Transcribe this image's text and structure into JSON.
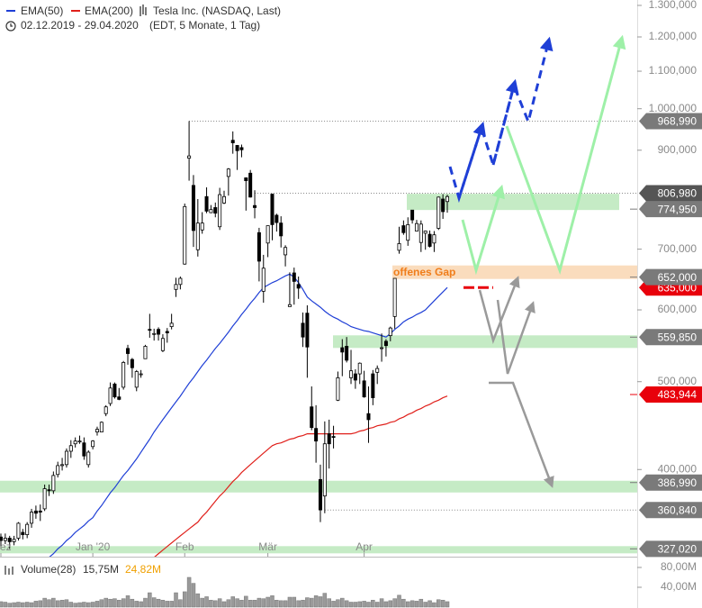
{
  "chart_data": {
    "type": "candlestick",
    "title": "Tesla Inc. (NASDAQ, Last)",
    "period": "02.12.2019 - 29.04.2020",
    "subtitle": "(EDT, 5 Monate, 1 Tag)",
    "annotation": "offenes Gap",
    "log_scale": true,
    "color": "#000000",
    "x": [
      "2019-12-02",
      "2019-12-03",
      "2019-12-04",
      "2019-12-05",
      "2019-12-06",
      "2019-12-09",
      "2019-12-10",
      "2019-12-11",
      "2019-12-12",
      "2019-12-13",
      "2019-12-16",
      "2019-12-17",
      "2019-12-18",
      "2019-12-19",
      "2019-12-20",
      "2019-12-23",
      "2019-12-24",
      "2019-12-26",
      "2019-12-27",
      "2019-12-30",
      "2019-12-31",
      "2020-01-02",
      "2020-01-03",
      "2020-01-06",
      "2020-01-07",
      "2020-01-08",
      "2020-01-09",
      "2020-01-10",
      "2020-01-13",
      "2020-01-14",
      "2020-01-15",
      "2020-01-16",
      "2020-01-17",
      "2020-01-21",
      "2020-01-22",
      "2020-01-23",
      "2020-01-24",
      "2020-01-27",
      "2020-01-28",
      "2020-01-29",
      "2020-01-30",
      "2020-01-31",
      "2020-02-03",
      "2020-02-04",
      "2020-02-05",
      "2020-02-06",
      "2020-02-07",
      "2020-02-10",
      "2020-02-11",
      "2020-02-12",
      "2020-02-13",
      "2020-02-14",
      "2020-02-18",
      "2020-02-19",
      "2020-02-20",
      "2020-02-21",
      "2020-02-24",
      "2020-02-25",
      "2020-02-26",
      "2020-02-27",
      "2020-02-28",
      "2020-03-02",
      "2020-03-03",
      "2020-03-04",
      "2020-03-05",
      "2020-03-06",
      "2020-03-09",
      "2020-03-10",
      "2020-03-11",
      "2020-03-12",
      "2020-03-13",
      "2020-03-16",
      "2020-03-17",
      "2020-03-18",
      "2020-03-19",
      "2020-03-20",
      "2020-03-23",
      "2020-03-24",
      "2020-03-25",
      "2020-03-26",
      "2020-03-27",
      "2020-03-30",
      "2020-03-31",
      "2020-04-01",
      "2020-04-02",
      "2020-04-03",
      "2020-04-06",
      "2020-04-07",
      "2020-04-08",
      "2020-04-09",
      "2020-04-13",
      "2020-04-14",
      "2020-04-15",
      "2020-04-16",
      "2020-04-17",
      "2020-04-20",
      "2020-04-21",
      "2020-04-22",
      "2020-04-23",
      "2020-04-24",
      "2020-04-27",
      "2020-04-28",
      "2020-04-29"
    ],
    "candles": {
      "open": [
        337,
        334,
        336,
        333,
        336,
        341,
        339,
        349,
        360,
        360,
        362,
        380,
        379,
        395,
        404,
        405,
        419,
        427,
        430,
        428,
        405,
        424,
        440,
        440,
        461,
        473,
        497,
        481,
        493,
        544,
        529,
        493,
        509,
        530,
        571,
        565,
        571,
        541,
        568,
        575,
        632,
        640,
        674,
        882,
        823,
        699,
        735,
        800,
        768,
        778,
        741,
        787,
        842,
        923,
        911,
        906,
        839,
        849,
        782,
        730,
        629,
        711,
        805,
        763,
        748,
        690,
        605,
        659,
        640,
        580,
        595,
        469,
        444,
        390,
        374,
        438,
        435,
        477,
        545,
        547,
        505,
        510,
        510,
        501,
        461,
        510,
        512,
        545,
        554,
        562,
        590,
        698,
        743,
        716,
        773,
        733,
        712,
        729,
        727,
        711,
        738,
        795,
        790
      ],
      "high": [
        340,
        340,
        338,
        338,
        350,
        344,
        350,
        362,
        365,
        366,
        385,
        385,
        398,
        408,
        412,
        422,
        431,
        434,
        436,
        434,
        420,
        431,
        446,
        452,
        471,
        499,
        499,
        492,
        527,
        549,
        531,
        515,
        515,
        549,
        594,
        572,
        574,
        564,
        573,
        594,
        651,
        653,
        786,
        969,
        845,
        795,
        769,
        819,
        783,
        788,
        818,
        812,
        860,
        944,
        912,
        913,
        840,
        856,
        813,
        739,
        690,
        743,
        806,
        766,
        761,
        707,
        660,
        668,
        653,
        596,
        607,
        494,
        471,
        405,
        452,
        454,
        447,
        513,
        557,
        560,
        542,
        516,
        525,
        514,
        494,
        515,
        521,
        565,
        557,
        575,
        650,
        741,
        753,
        759,
        772,
        754,
        753,
        734,
        734,
        733,
        800,
        805,
        804
      ],
      "low": [
        327,
        331,
        327,
        330,
        334,
        335,
        336,
        345,
        353,
        351,
        360,
        374,
        376,
        392,
        399,
        402,
        412,
        423,
        427,
        410,
        402,
        421,
        436,
        440,
        458,
        470,
        479,
        477,
        490,
        522,
        505,
        488,
        505,
        530,
        559,
        555,
        555,
        539,
        552,
        571,
        620,
        632,
        673,
        833,
        704,
        687,
        728,
        767,
        767,
        759,
        735,
        785,
        802,
        892,
        856,
        884,
        772,
        798,
        757,
        645,
        611,
        686,
        716,
        732,
        703,
        670,
        605,
        608,
        617,
        546,
        505,
        442,
        407,
        350,
        358,
        401,
        422,
        476,
        507,
        525,
        497,
        491,
        497,
        480,
        428,
        471,
        497,
        526,
        533,
        554,
        572,
        692,
        726,
        706,
        747,
        733,
        695,
        699,
        703,
        695,
        735,
        756,
        768
      ],
      "close": [
        334,
        336,
        333,
        335,
        349,
        339,
        348,
        359,
        358,
        359,
        381,
        379,
        394,
        404,
        405,
        419,
        425,
        430,
        430,
        414,
        418,
        430,
        443,
        451,
        469,
        492,
        481,
        478,
        525,
        537,
        518,
        513,
        510,
        547,
        570,
        565,
        564,
        558,
        566,
        580,
        640,
        650,
        780,
        887,
        734,
        748,
        748,
        771,
        774,
        767,
        804,
        800,
        858,
        917,
        899,
        901,
        833,
        799,
        778,
        679,
        667,
        743,
        745,
        749,
        724,
        703,
        608,
        645,
        634,
        560,
        546,
        445,
        430,
        361,
        427,
        427,
        434,
        505,
        539,
        528,
        514,
        502,
        524,
        481,
        454,
        480,
        517,
        545,
        548,
        573,
        650,
        710,
        730,
        745,
        754,
        747,
        746,
        733,
        705,
        726,
        799,
        770,
        800
      ]
    },
    "series": [
      {
        "name": "EMA(50)",
        "color": "#1f3fd6",
        "values": [
          null,
          null,
          null,
          null,
          null,
          null,
          null,
          null,
          null,
          null,
          null,
          320,
          323,
          327,
          330,
          334,
          337,
          341,
          344,
          347,
          351,
          354,
          360,
          365,
          371,
          377,
          382,
          388,
          394,
          399,
          405,
          411,
          418,
          425,
          432,
          440,
          447,
          454,
          461,
          468,
          475,
          482,
          490,
          498,
          505,
          513,
          521,
          528,
          536,
          544,
          551,
          559,
          567,
          576,
          584,
          593,
          601,
          610,
          618,
          627,
          635,
          639,
          643,
          646,
          650,
          654,
          657,
          652,
          643,
          632,
          620,
          614,
          609,
          604,
          598,
          593,
          589,
          586,
          582,
          579,
          575,
          573,
          571,
          569,
          568,
          566,
          564,
          562,
          560,
          565,
          571,
          576,
          582,
          586,
          589,
          593,
          596,
          600,
          607,
          614,
          621,
          628,
          635
        ]
      },
      {
        "name": "EMA(200)",
        "color": "#e0201b",
        "values": [
          null,
          null,
          null,
          null,
          null,
          null,
          null,
          null,
          null,
          null,
          null,
          null,
          null,
          null,
          null,
          null,
          null,
          null,
          null,
          null,
          null,
          null,
          null,
          null,
          null,
          null,
          null,
          null,
          null,
          null,
          null,
          null,
          null,
          null,
          null,
          320,
          323,
          326,
          329,
          332,
          335,
          338,
          341,
          344,
          347,
          350,
          355,
          359,
          364,
          369,
          374,
          378,
          383,
          388,
          392,
          397,
          401,
          405,
          409,
          413,
          417,
          421,
          425,
          427,
          428,
          430,
          432,
          433,
          435,
          436,
          438,
          438,
          438,
          438,
          438,
          438,
          438,
          438,
          438,
          438,
          438,
          439,
          441,
          442,
          444,
          445,
          447,
          448,
          449,
          451,
          452,
          455,
          457,
          460,
          462,
          465,
          467,
          470,
          472,
          475,
          477,
          480,
          482
        ]
      }
    ],
    "ylim": [
      320.6,
      1318
    ],
    "yticks": [
      {
        "value": 400,
        "label": "400,000"
      },
      {
        "value": 500,
        "label": "500,000"
      },
      {
        "value": 600,
        "label": "600,000"
      },
      {
        "value": 700,
        "label": "700,000"
      },
      {
        "value": 900,
        "label": "900,000"
      },
      {
        "value": 1000,
        "label": "1.000,000"
      },
      {
        "value": 1100,
        "label": "1.100,000"
      },
      {
        "value": 1200,
        "label": "1.200,000"
      },
      {
        "value": 1300,
        "label": "1.300,000"
      }
    ],
    "xticks": [
      {
        "value": "2019-12-02",
        "label": "ez"
      },
      {
        "value": "2020-01-02",
        "label": "Jan '20"
      },
      {
        "value": "2020-02-03",
        "label": "Feb"
      },
      {
        "value": "2020-03-02",
        "label": "Mär"
      },
      {
        "value": "2020-04-01",
        "label": "Apr"
      }
    ],
    "levels": [
      {
        "value": 968.99,
        "label": "968,990",
        "color": "#7a7a7a",
        "style": "dotted"
      },
      {
        "value": 806.98,
        "label": "806,980",
        "color": "#555555",
        "style": "dotted"
      },
      {
        "value": 774.95,
        "label": "774,950",
        "color": "#7a7a7a"
      },
      {
        "value": 635,
        "label": "635,000",
        "color": "#e8000b"
      },
      {
        "value": 652,
        "label": "652,000",
        "color": "#7a7a7a"
      },
      {
        "value": 559.85,
        "label": "559,850",
        "color": "#7a7a7a"
      },
      {
        "value": 483.944,
        "label": "483,944",
        "color": "#e8000b"
      },
      {
        "value": 386.99,
        "label": "386,990",
        "color": "#7a7a7a"
      },
      {
        "value": 360.84,
        "label": "360,840",
        "color": "#7a7a7a",
        "style": "dotted"
      },
      {
        "value": 327.02,
        "label": "327,020",
        "color": "#7a7a7a"
      }
    ],
    "volume": {
      "name": "Volume(28)",
      "color": "#9a9a9a",
      "averages": [
        "15,75M",
        "24,82M"
      ],
      "ylim": [
        0,
        94.5
      ],
      "yticks": [
        {
          "value": 80,
          "label": "80,00M"
        },
        {
          "value": 40,
          "label": "40,00M"
        }
      ],
      "values": [
        11,
        10,
        8,
        9,
        10,
        9,
        10,
        9,
        12,
        13,
        18,
        15,
        18,
        13,
        14,
        15,
        10,
        8,
        9,
        10,
        9,
        10,
        12,
        15,
        18,
        16,
        17,
        14,
        17,
        23,
        16,
        12,
        11,
        18,
        29,
        19,
        16,
        14,
        12,
        12,
        29,
        15,
        31,
        60,
        48,
        27,
        18,
        21,
        14,
        13,
        17,
        11,
        15,
        21,
        17,
        14,
        22,
        14,
        14,
        18,
        17,
        20,
        23,
        14,
        13,
        13,
        20,
        20,
        13,
        14,
        19,
        18,
        23,
        21,
        28,
        17,
        12,
        15,
        18,
        13,
        10,
        10,
        11,
        12,
        10,
        14,
        10,
        17,
        11,
        13,
        17,
        24,
        16,
        11,
        13,
        12,
        16,
        10,
        13,
        9,
        15,
        14,
        11
      ]
    }
  }
}
